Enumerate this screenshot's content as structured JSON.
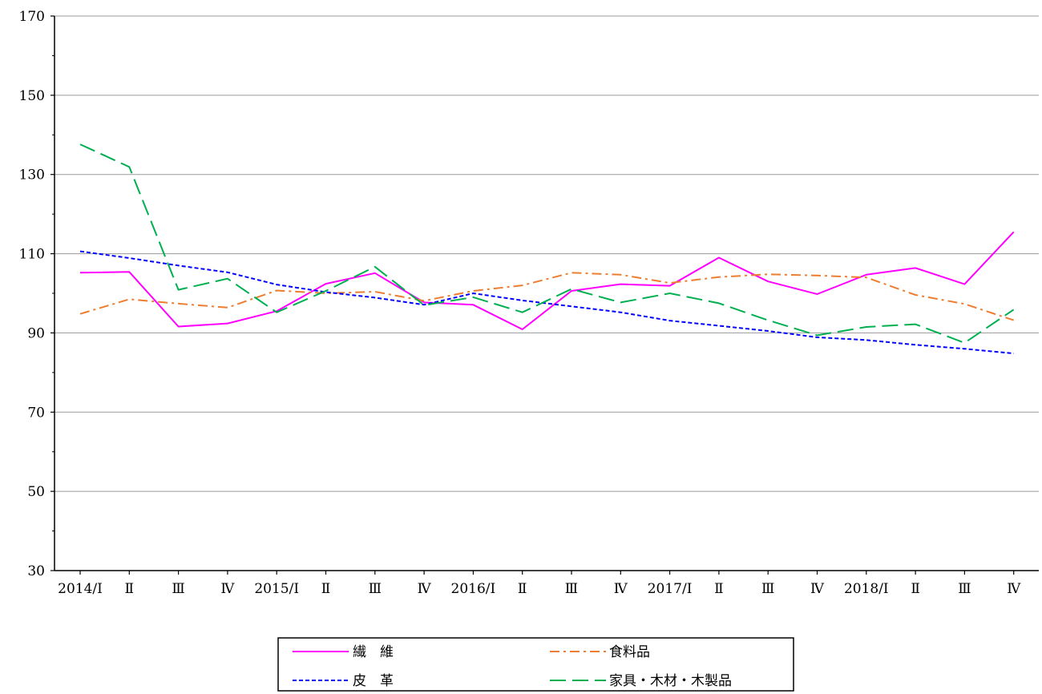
{
  "chart_data": {
    "type": "line",
    "title": "",
    "xlabel": "",
    "ylabel": "",
    "ylim": [
      30,
      170
    ],
    "y_ticks": [
      30,
      50,
      70,
      90,
      110,
      130,
      150,
      170
    ],
    "grid": "horizontal",
    "legend_position": "bottom",
    "categories": [
      "2014/Ⅰ",
      "Ⅱ",
      "Ⅲ",
      "Ⅳ",
      "2015/Ⅰ",
      "Ⅱ",
      "Ⅲ",
      "Ⅳ",
      "2016/Ⅰ",
      "Ⅱ",
      "Ⅲ",
      "Ⅳ",
      "2017/Ⅰ",
      "Ⅱ",
      "Ⅲ",
      "Ⅳ",
      "2018/Ⅰ",
      "Ⅱ",
      "Ⅲ",
      "Ⅳ"
    ],
    "series": [
      {
        "name": "繊　維",
        "color": "#ff00ff",
        "dash": "solid",
        "values": [
          105.2,
          105.4,
          91.6,
          92.4,
          95.5,
          102.4,
          105.1,
          97.7,
          97.1,
          90.9,
          100.6,
          102.3,
          101.9,
          109.0,
          103.0,
          99.8,
          104.7,
          106.4,
          102.3,
          115.5
        ]
      },
      {
        "name": "食料品",
        "color": "#ed7d31",
        "dash": "dashdot",
        "values": [
          94.8,
          98.5,
          97.4,
          96.4,
          100.7,
          100.0,
          100.4,
          98.1,
          100.6,
          102.0,
          105.2,
          104.7,
          102.6,
          104.1,
          104.8,
          104.5,
          104.0,
          99.6,
          97.3,
          93.2
        ]
      },
      {
        "name": "皮　革",
        "color": "#0000ff",
        "dash": "dotted",
        "values": [
          110.6,
          108.9,
          107.0,
          105.3,
          102.2,
          100.3,
          98.9,
          97.1,
          100.0,
          98.2,
          96.7,
          95.2,
          93.1,
          91.8,
          90.5,
          88.9,
          88.2,
          87.0,
          86.0,
          84.8
        ]
      },
      {
        "name": "家具・木材・木製品",
        "color": "#00b050",
        "dash": "longdash",
        "values": [
          137.6,
          131.9,
          100.9,
          103.7,
          95.2,
          100.6,
          106.7,
          97.0,
          99.0,
          95.2,
          101.1,
          97.7,
          100.0,
          97.5,
          93.2,
          89.4,
          91.5,
          92.2,
          87.5,
          95.9
        ]
      }
    ]
  }
}
